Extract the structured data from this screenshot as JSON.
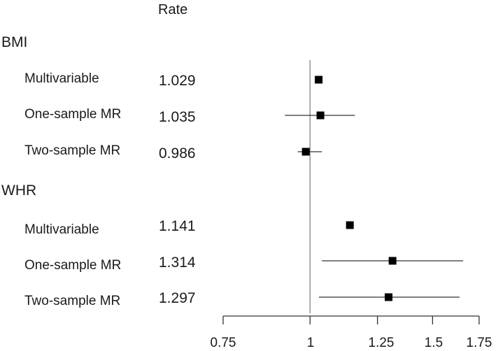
{
  "chart_data": {
    "type": "forest",
    "column_header": "Rate",
    "reference_line": 1,
    "xlim": [
      0.75,
      1.75
    ],
    "xticks": [
      0.75,
      1,
      1.25,
      1.5,
      1.75
    ],
    "xtick_labels": [
      "0.75",
      "1",
      "1.25",
      "1.5",
      "1.75"
    ],
    "groups": [
      {
        "name": "BMI",
        "rows": [
          {
            "label": "Multivariable",
            "rate_text": "1.029",
            "estimate": 1.029,
            "lower": 1.022,
            "upper": 1.036
          },
          {
            "label": "One-sample MR",
            "rate_text": "1.035",
            "estimate": 1.035,
            "lower": 0.92,
            "upper": 1.16
          },
          {
            "label": "Two-sample MR",
            "rate_text": "0.986",
            "estimate": 0.986,
            "lower": 0.96,
            "upper": 1.04
          }
        ]
      },
      {
        "name": "WHR",
        "rows": [
          {
            "label": "Multivariable",
            "rate_text": "1.141",
            "estimate": 1.141,
            "lower": 1.13,
            "upper": 1.155
          },
          {
            "label": "One-sample MR",
            "rate_text": "1.314",
            "estimate": 1.314,
            "lower": 1.04,
            "upper": 1.66
          },
          {
            "label": "Two-sample MR",
            "rate_text": "1.297",
            "estimate": 1.297,
            "lower": 1.03,
            "upper": 1.64
          }
        ]
      }
    ]
  }
}
